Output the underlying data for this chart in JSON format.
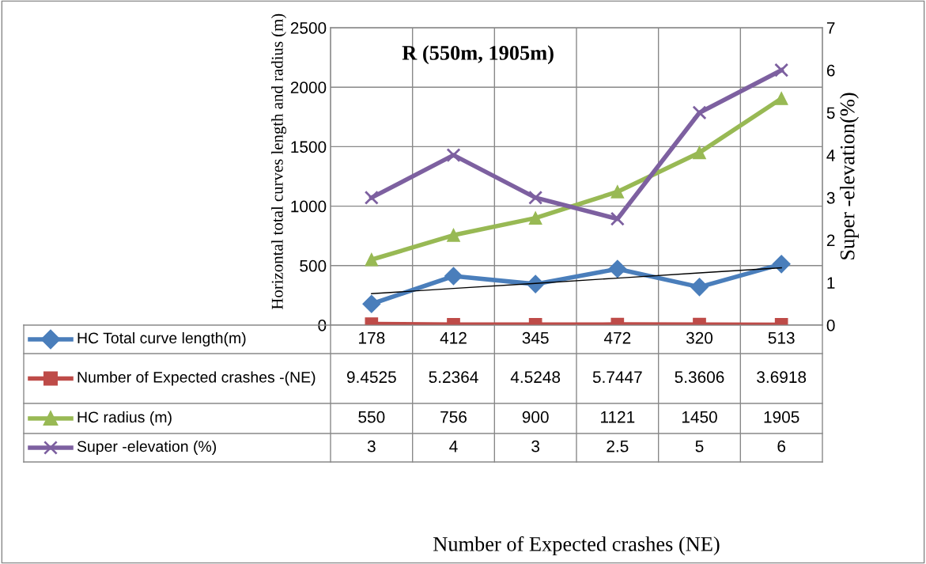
{
  "chart_data": {
    "type": "line",
    "title": "R (550m, 1905m)",
    "ylabel": "Horizontal total curves length and radius (m)",
    "y2label": "Super -elevation(%)",
    "annotations": [
      "Number of Expected crashes (NE)"
    ],
    "categories": [
      null,
      null,
      null,
      null,
      null,
      null
    ],
    "series": [
      {
        "name": "HC Total curve length(m)",
        "color": "#4a7ebb",
        "marker": "diamond",
        "values": [
          178,
          412,
          345,
          472,
          320,
          513
        ],
        "value_labels": [
          "178",
          "412",
          "345",
          "472",
          "320",
          "513"
        ]
      },
      {
        "name": "Number of Expected crashes -(NE)",
        "color": "#be4b48",
        "marker": "square",
        "values": [
          9.4525,
          5.2364,
          4.5248,
          5.7447,
          5.3606,
          3.6918
        ],
        "value_labels": [
          "9.4525",
          "5.2364",
          "4.5248",
          "5.7447",
          "5.3606",
          "3.6918"
        ]
      },
      {
        "name": "HC radius (m)",
        "color": "#98b954",
        "marker": "triangle",
        "values": [
          550,
          756,
          900,
          1121,
          1450,
          1905
        ],
        "value_labels": [
          "550",
          "756",
          "900",
          "1121",
          "1450",
          "1905"
        ]
      },
      {
        "name": "Super -elevation (%)",
        "color": "#7d60a0",
        "marker": "cross",
        "axis": "y2",
        "values": [
          3,
          4,
          3,
          2.5,
          5,
          6
        ],
        "value_labels": [
          "3",
          "4",
          "3",
          "2.5",
          "5",
          "6"
        ]
      },
      {
        "type": "line",
        "color": "#000000",
        "marker": "none",
        "values": [
          264,
          308,
          351,
          395,
          439,
          482
        ]
      }
    ],
    "ylim": [
      0,
      2500
    ],
    "yticks": [
      0,
      500,
      1000,
      1500,
      2000,
      2500
    ],
    "y2lim": [
      0,
      7
    ],
    "y2ticks": [
      0,
      1,
      2,
      3,
      4,
      5,
      6,
      7
    ],
    "grid": true,
    "legend": "bottom"
  }
}
